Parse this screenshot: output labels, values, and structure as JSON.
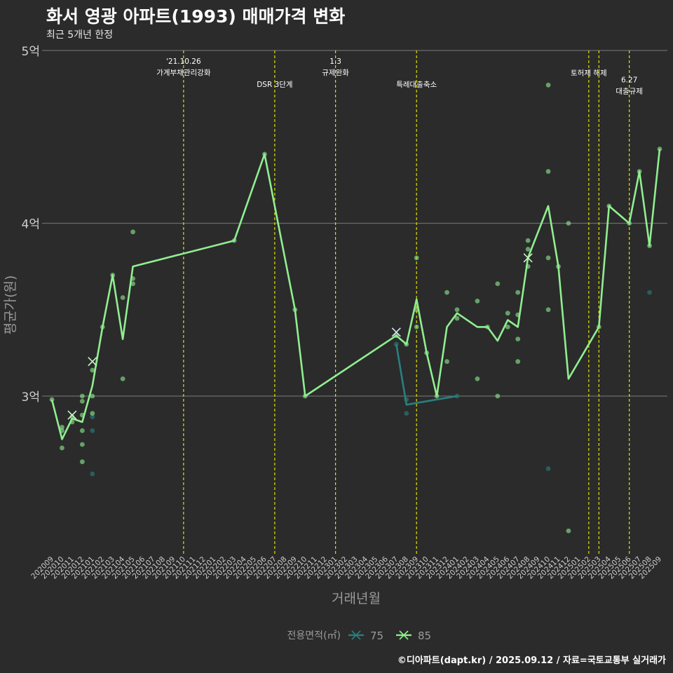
{
  "chart_data": {
    "type": "line",
    "title": "화서 영광 아파트(1993) 매매가격 변화",
    "subtitle": "최근 5개년 한정",
    "xlabel": "거래년월",
    "ylabel": "평균가(원)",
    "caption": "©디아파트(dapt.kr) / 2025.09.12 / 자료=국토교통부 실거래가",
    "legend_title": "전용면적(㎡)",
    "legend_position": "bottom",
    "ylim": [
      2.1,
      5.0
    ],
    "yticks": [
      {
        "value": 3,
        "label": "3억"
      },
      {
        "value": 4,
        "label": "4억"
      },
      {
        "value": 5,
        "label": "5억"
      }
    ],
    "months": [
      "202009",
      "202010",
      "202011",
      "202012",
      "202101",
      "202102",
      "202103",
      "202104",
      "202105",
      "202106",
      "202107",
      "202108",
      "202109",
      "202110",
      "202111",
      "202112",
      "202201",
      "202202",
      "202203",
      "202204",
      "202205",
      "202206",
      "202207",
      "202208",
      "202209",
      "202210",
      "202211",
      "202212",
      "202301",
      "202302",
      "202303",
      "202304",
      "202305",
      "202306",
      "202307",
      "202308",
      "202309",
      "202310",
      "202311",
      "202312",
      "202401",
      "202402",
      "202403",
      "202404",
      "202405",
      "202406",
      "202407",
      "202408",
      "202409",
      "202410",
      "202411",
      "202412",
      "202501",
      "202502",
      "202503",
      "202504",
      "202505",
      "202506",
      "202507",
      "202508",
      "202509"
    ],
    "colors": {
      "background": "#2b2b2b",
      "grid": "#6b6b6b",
      "event_line": "#e0e000",
      "text": "#ffffff",
      "axis_label": "#9a9a9a"
    },
    "events": [
      {
        "month": "202110",
        "label_lines": [
          "'21.10.26",
          "가계부채관리강화"
        ],
        "label_level": 1
      },
      {
        "month": "202207",
        "label_lines": [
          "DSR 3단계"
        ],
        "label_level": 3
      },
      {
        "month": "202301",
        "label_lines": [
          "1.3",
          "규제완화"
        ],
        "label_level": 1
      },
      {
        "month": "202309",
        "label_lines": [
          "특례대출축소"
        ],
        "label_level": 3
      },
      {
        "month": "202502",
        "label_lines": [
          "토허제 해제"
        ],
        "label_level": 2
      },
      {
        "month": "202503",
        "label_lines": [],
        "label_level": 2
      },
      {
        "month": "202506",
        "label_lines": [
          "6.27",
          "대출규제"
        ],
        "label_level": 2.6
      }
    ],
    "series": [
      {
        "name": "75",
        "color": "#2a7f7f",
        "line": [
          {
            "month": "202307",
            "value": 3.3
          },
          {
            "month": "202308",
            "value": 2.95
          },
          {
            "month": "202401",
            "value": 3.0
          }
        ],
        "markers": [
          {
            "month": "202307",
            "value": 3.37
          }
        ],
        "points": [
          {
            "month": "202101",
            "value": 2.8
          },
          {
            "month": "202101",
            "value": 2.88
          },
          {
            "month": "202101",
            "value": 2.55
          },
          {
            "month": "202307",
            "value": 3.3
          },
          {
            "month": "202308",
            "value": 2.9
          },
          {
            "month": "202308",
            "value": 2.98
          },
          {
            "month": "202401",
            "value": 3.0
          },
          {
            "month": "202410",
            "value": 2.58
          },
          {
            "month": "202508",
            "value": 3.6
          }
        ]
      },
      {
        "name": "85",
        "color": "#90ee90",
        "line": [
          {
            "month": "202009",
            "value": 2.98
          },
          {
            "month": "202010",
            "value": 2.75
          },
          {
            "month": "202011",
            "value": 2.87
          },
          {
            "month": "202012",
            "value": 2.85
          },
          {
            "month": "202101",
            "value": 3.06
          },
          {
            "month": "202102",
            "value": 3.4
          },
          {
            "month": "202103",
            "value": 3.7
          },
          {
            "month": "202104",
            "value": 3.33
          },
          {
            "month": "202105",
            "value": 3.75
          },
          {
            "month": "202203",
            "value": 3.9
          },
          {
            "month": "202206",
            "value": 4.4
          },
          {
            "month": "202209",
            "value": 3.5
          },
          {
            "month": "202210",
            "value": 3.0
          },
          {
            "month": "202307",
            "value": 3.35
          },
          {
            "month": "202308",
            "value": 3.3
          },
          {
            "month": "202309",
            "value": 3.56
          },
          {
            "month": "202310",
            "value": 3.25
          },
          {
            "month": "202311",
            "value": 3.0
          },
          {
            "month": "202312",
            "value": 3.4
          },
          {
            "month": "202401",
            "value": 3.48
          },
          {
            "month": "202403",
            "value": 3.4
          },
          {
            "month": "202404",
            "value": 3.4
          },
          {
            "month": "202405",
            "value": 3.32
          },
          {
            "month": "202406",
            "value": 3.44
          },
          {
            "month": "202407",
            "value": 3.4
          },
          {
            "month": "202408",
            "value": 3.8
          },
          {
            "month": "202410",
            "value": 4.1
          },
          {
            "month": "202411",
            "value": 3.75
          },
          {
            "month": "202412",
            "value": 3.1
          },
          {
            "month": "202503",
            "value": 3.4
          },
          {
            "month": "202504",
            "value": 4.1
          },
          {
            "month": "202506",
            "value": 4.0
          },
          {
            "month": "202507",
            "value": 4.3
          },
          {
            "month": "202508",
            "value": 3.87
          },
          {
            "month": "202509",
            "value": 4.43
          }
        ],
        "markers": [
          {
            "month": "202011",
            "value": 2.89
          },
          {
            "month": "202101",
            "value": 3.2
          },
          {
            "month": "202408",
            "value": 3.8
          }
        ],
        "points": [
          {
            "month": "202009",
            "value": 2.98
          },
          {
            "month": "202010",
            "value": 2.7
          },
          {
            "month": "202010",
            "value": 2.8
          },
          {
            "month": "202010",
            "value": 2.82
          },
          {
            "month": "202011",
            "value": 2.85
          },
          {
            "month": "202011",
            "value": 2.88
          },
          {
            "month": "202012",
            "value": 2.62
          },
          {
            "month": "202012",
            "value": 2.72
          },
          {
            "month": "202012",
            "value": 2.8
          },
          {
            "month": "202012",
            "value": 2.89
          },
          {
            "month": "202012",
            "value": 2.97
          },
          {
            "month": "202012",
            "value": 3.0
          },
          {
            "month": "202101",
            "value": 2.9
          },
          {
            "month": "202101",
            "value": 3.0
          },
          {
            "month": "202101",
            "value": 3.15
          },
          {
            "month": "202102",
            "value": 3.4
          },
          {
            "month": "202103",
            "value": 3.7
          },
          {
            "month": "202104",
            "value": 3.1
          },
          {
            "month": "202104",
            "value": 3.57
          },
          {
            "month": "202105",
            "value": 3.65
          },
          {
            "month": "202105",
            "value": 3.68
          },
          {
            "month": "202105",
            "value": 3.95
          },
          {
            "month": "202203",
            "value": 3.9
          },
          {
            "month": "202206",
            "value": 4.4
          },
          {
            "month": "202209",
            "value": 3.5
          },
          {
            "month": "202210",
            "value": 3.0
          },
          {
            "month": "202307",
            "value": 3.35
          },
          {
            "month": "202308",
            "value": 3.3
          },
          {
            "month": "202309",
            "value": 3.4
          },
          {
            "month": "202309",
            "value": 3.5
          },
          {
            "month": "202309",
            "value": 3.8
          },
          {
            "month": "202310",
            "value": 3.25
          },
          {
            "month": "202311",
            "value": 3.0
          },
          {
            "month": "202312",
            "value": 3.2
          },
          {
            "month": "202312",
            "value": 3.6
          },
          {
            "month": "202401",
            "value": 3.45
          },
          {
            "month": "202401",
            "value": 3.5
          },
          {
            "month": "202403",
            "value": 3.1
          },
          {
            "month": "202403",
            "value": 3.55
          },
          {
            "month": "202404",
            "value": 3.4
          },
          {
            "month": "202405",
            "value": 3.0
          },
          {
            "month": "202405",
            "value": 3.65
          },
          {
            "month": "202406",
            "value": 3.4
          },
          {
            "month": "202406",
            "value": 3.48
          },
          {
            "month": "202407",
            "value": 3.2
          },
          {
            "month": "202407",
            "value": 3.33
          },
          {
            "month": "202407",
            "value": 3.47
          },
          {
            "month": "202407",
            "value": 3.6
          },
          {
            "month": "202408",
            "value": 3.75
          },
          {
            "month": "202408",
            "value": 3.85
          },
          {
            "month": "202408",
            "value": 3.9
          },
          {
            "month": "202410",
            "value": 3.5
          },
          {
            "month": "202410",
            "value": 3.8
          },
          {
            "month": "202410",
            "value": 4.3
          },
          {
            "month": "202410",
            "value": 4.8
          },
          {
            "month": "202411",
            "value": 3.75
          },
          {
            "month": "202412",
            "value": 4.0
          },
          {
            "month": "202412",
            "value": 2.22
          },
          {
            "month": "202503",
            "value": 3.4
          },
          {
            "month": "202504",
            "value": 4.1
          },
          {
            "month": "202506",
            "value": 4.0
          },
          {
            "month": "202507",
            "value": 4.3
          },
          {
            "month": "202508",
            "value": 3.87
          },
          {
            "month": "202509",
            "value": 4.43
          }
        ]
      }
    ]
  }
}
